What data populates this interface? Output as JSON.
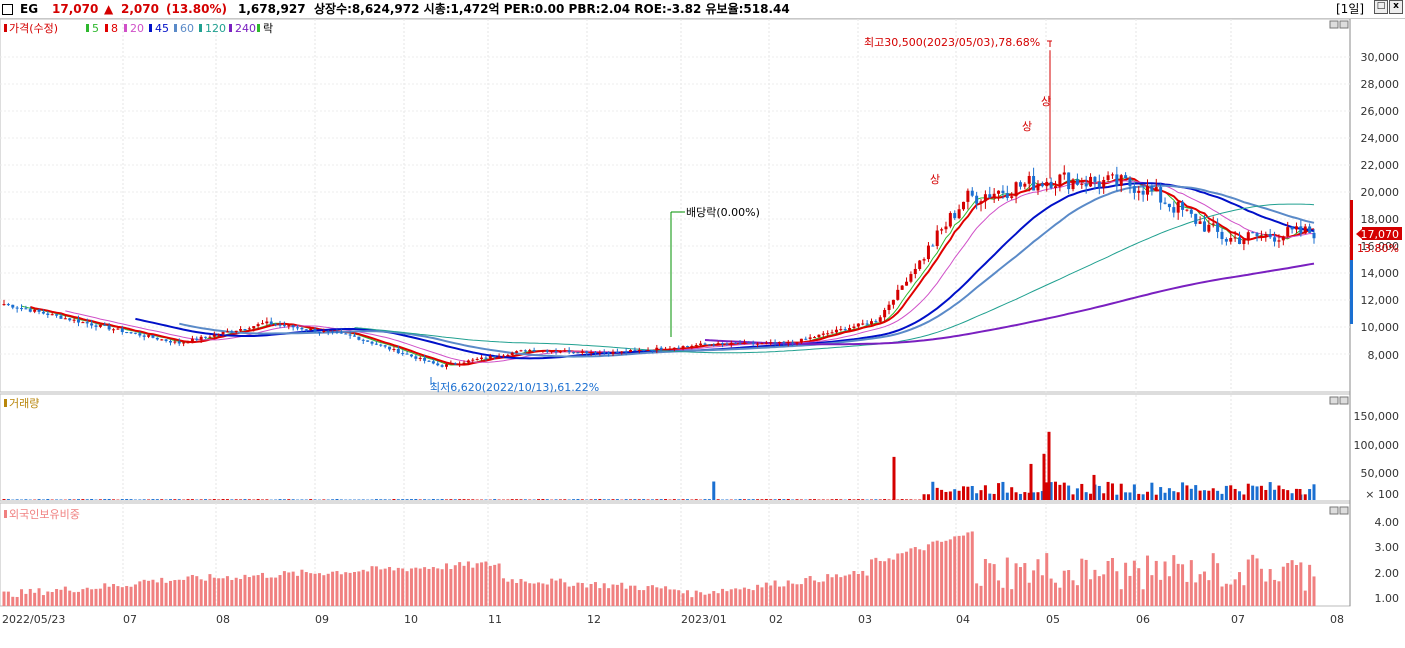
{
  "header": {
    "code": "EG",
    "price": "17,070",
    "change_arrow": "▲",
    "change": "2,070",
    "change_pct": "(13.80%)",
    "volume": "1,678,927",
    "stats": "상장수:8,624,972 시총:1,472억 PER:0.00 PBR:2.04 ROE:-3.82 유보율:518.44",
    "period_button": "[1일]",
    "minimize_icon": "□",
    "close_icon": "x"
  },
  "colors": {
    "up": "#d40000",
    "down": "#1a6fd1",
    "ma5": "#2eb82e",
    "ma8": "#e00000",
    "ma20": "#d050c8",
    "ma45": "#0010c8",
    "ma60": "#5a8ac8",
    "ma120": "#20a090",
    "ma240": "#7a20c0",
    "foreign": "#f08080"
  },
  "price_panel": {
    "legend": [
      {
        "label": "가격(수정)",
        "color": "#d40000"
      },
      {
        "label": "5",
        "color": "#2eb82e"
      },
      {
        "label": "8",
        "color": "#e00000"
      },
      {
        "label": "20",
        "color": "#d050c8"
      },
      {
        "label": "45",
        "color": "#0010c8"
      },
      {
        "label": "60",
        "color": "#5a8ac8"
      },
      {
        "label": "120",
        "color": "#20a090"
      },
      {
        "label": "240",
        "color": "#7a20c0"
      },
      {
        "label": "락",
        "color": "#2eb82e"
      }
    ],
    "y_ticks": [
      "30,000",
      "28,000",
      "26,000",
      "24,000",
      "22,000",
      "20,000",
      "18,000",
      "16,000",
      "14,000",
      "12,000",
      "10,000",
      "8,000"
    ],
    "current_price_label": "17,070",
    "current_pct_label": "13.80%",
    "annotation_high": "최고30,500(2023/05/03),78.68%",
    "annotation_low": "최저6,620(2022/10/13),61.22%",
    "annotation_dividend": "배당락(0.00%)",
    "marker_high_1": "상",
    "marker_high_2": "상",
    "marker_high_3": "상"
  },
  "volume_panel": {
    "title": "거래량",
    "y_ticks": [
      "150,000",
      "100,000",
      "50,000",
      "× 100"
    ]
  },
  "foreign_panel": {
    "title": "외국인보유비중",
    "y_ticks": [
      "4.00",
      "3.00",
      "2.00",
      "1.00"
    ]
  },
  "x_axis": {
    "labels": [
      "2022/05/23",
      "07",
      "08",
      "09",
      "10",
      "11",
      "12",
      "2023/01",
      "02",
      "03",
      "04",
      "05",
      "06",
      "07",
      "08"
    ]
  },
  "chart_data": {
    "type": "candlestick",
    "title": "EG",
    "x_start": "2022/05/23",
    "x_end": "2023/07",
    "price_range": [
      6620,
      30500
    ],
    "high": {
      "value": 30500,
      "date": "2023/05/03",
      "pct": "78.68%"
    },
    "low": {
      "value": 6620,
      "date": "2022/10/13",
      "pct": "61.22%"
    },
    "close_trend": [
      {
        "x": "2022/05/23",
        "y": 11700
      },
      {
        "x": "2022/06",
        "y": 10200
      },
      {
        "x": "07",
        "y": 8800
      },
      {
        "x": "08",
        "y": 10300
      },
      {
        "x": "09",
        "y": 9300
      },
      {
        "x": "10",
        "y": 7100
      },
      {
        "x": "11",
        "y": 8300
      },
      {
        "x": "12",
        "y": 8100
      },
      {
        "x": "2023/01",
        "y": 8700
      },
      {
        "x": "02",
        "y": 8800
      },
      {
        "x": "03",
        "y": 10500
      },
      {
        "x": "04",
        "y": 19500
      },
      {
        "x": "05",
        "y": 21000
      },
      {
        "x": "06",
        "y": 20500
      },
      {
        "x": "07",
        "y": 16500
      },
      {
        "x": "07-end",
        "y": 17070
      }
    ],
    "last_close": 17070,
    "volume_ylim": [
      0,
      160000
    ],
    "foreign_ownership_ylim": [
      0.5,
      4.3
    ]
  }
}
